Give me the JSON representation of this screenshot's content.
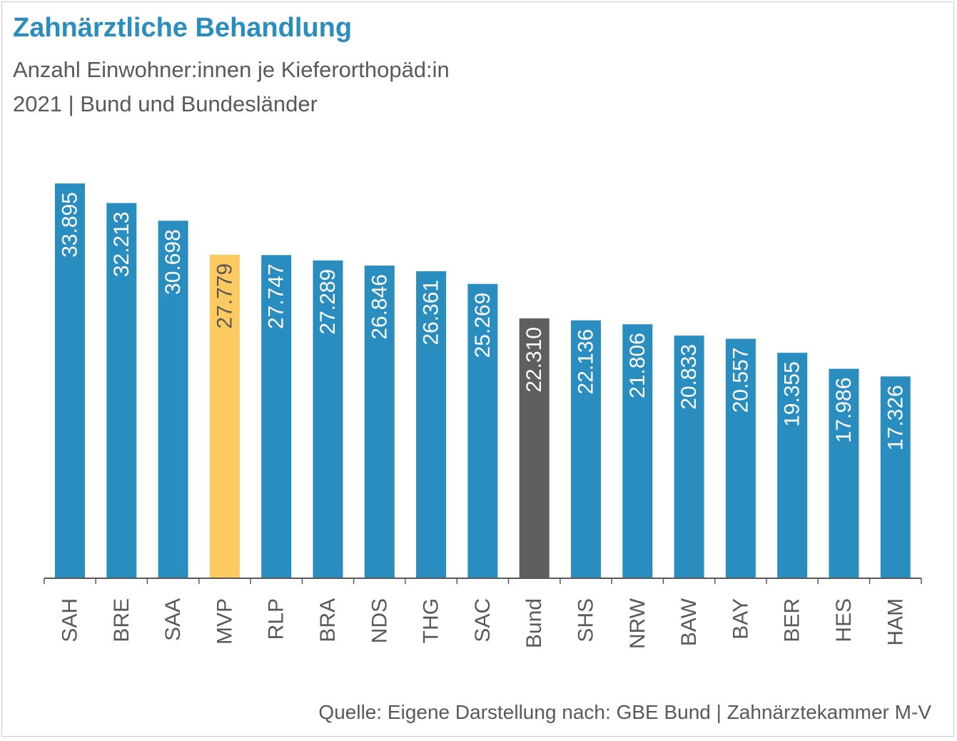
{
  "title": "Zahnärztliche Behandlung",
  "subtitle_line1": "Anzahl Einwohner:innen je Kieferorthopäd:in",
  "subtitle_line2": "2021 | Bund und Bundesländer",
  "source": "Quelle: Eigene Darstellung nach: GBE Bund | Zahnärztekammer M-V",
  "colors": {
    "title": "#2a8dbf",
    "bar_default": "#2a8dbf",
    "bar_highlight": "#fdca61",
    "bar_federal": "#5f5f5f",
    "label_default": "#ffffff",
    "label_highlight": "#595959",
    "axis": "#595959"
  },
  "chart_data": {
    "type": "bar",
    "title": "Zahnärztliche Behandlung",
    "xlabel": "",
    "ylabel": "",
    "ylim": [
      0,
      36000
    ],
    "grid": false,
    "legend": "none",
    "categories": [
      "SAH",
      "BRE",
      "SAA",
      "MVP",
      "RLP",
      "BRA",
      "NDS",
      "THG",
      "SAC",
      "Bund",
      "SHS",
      "NRW",
      "BAW",
      "BAY",
      "BER",
      "HES",
      "HAM"
    ],
    "values": [
      33895,
      32213,
      30698,
      27779,
      27747,
      27289,
      26846,
      26361,
      25269,
      22310,
      22136,
      21806,
      20833,
      20557,
      19355,
      17986,
      17326
    ],
    "data_labels": [
      "33.895",
      "32.213",
      "30.698",
      "27.779",
      "27.747",
      "27.289",
      "26.846",
      "26.361",
      "25.269",
      "22.310",
      "22.136",
      "21.806",
      "20.833",
      "20.557",
      "19.355",
      "17.986",
      "17.326"
    ],
    "highlight": {
      "MVP": "highlight",
      "Bund": "federal"
    }
  }
}
